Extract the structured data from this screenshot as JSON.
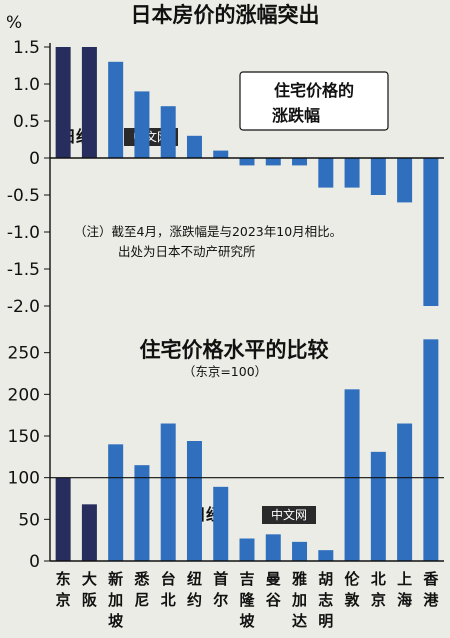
{
  "chart_data": [
    {
      "type": "bar",
      "title": "日本房价的涨幅突出",
      "ylabel": "%",
      "ylim": [
        -2.0,
        1.5
      ],
      "yticks": [
        "1.5",
        "1.0",
        "0.5",
        "0",
        "-0.5",
        "-1.0",
        "-1.5",
        "-2.0"
      ],
      "legend_box": [
        "住宅价格的",
        "涨跌幅"
      ],
      "note": [
        "（注）截至4月，涨跌幅是与2023年10月相比。",
        "出处为日本不动产研究所"
      ],
      "categories": [
        "东京",
        "大阪",
        "新加坡",
        "悉尼",
        "台北",
        "纽约",
        "首尔",
        "吉隆坡",
        "曼谷",
        "雅加达",
        "胡志明",
        "伦敦",
        "北京",
        "上海",
        "香港"
      ],
      "values": [
        1.5,
        1.5,
        1.3,
        0.9,
        0.7,
        0.3,
        0.1,
        -0.1,
        -0.1,
        -0.1,
        -0.4,
        -0.4,
        -0.5,
        -0.6,
        -2.0
      ],
      "colors": {
        "japan": "#272d5c",
        "other": "#2f6fbd"
      }
    },
    {
      "type": "bar",
      "title": "住宅价格水平的比较",
      "subtitle": "（东京=100）",
      "ylim": [
        0,
        270
      ],
      "yticks": [
        "250",
        "200",
        "150",
        "100",
        "50",
        "0"
      ],
      "categories": [
        "东京",
        "大阪",
        "新加坡",
        "悉尼",
        "台北",
        "纽约",
        "首尔",
        "吉隆坡",
        "曼谷",
        "雅加达",
        "胡志明",
        "伦敦",
        "北京",
        "上海",
        "香港"
      ],
      "values": [
        100,
        68,
        140,
        115,
        165,
        144,
        89,
        27,
        32,
        23,
        13,
        206,
        131,
        165,
        266
      ],
      "colors": {
        "japan": "#272d5c",
        "other": "#2f6fbd"
      }
    }
  ],
  "category_labels": [
    [
      "东",
      "京"
    ],
    [
      "大",
      "阪"
    ],
    [
      "新",
      "加",
      "坡"
    ],
    [
      "悉",
      "尼"
    ],
    [
      "台",
      "北"
    ],
    [
      "纽",
      "约"
    ],
    [
      "首",
      "尔"
    ],
    [
      "吉",
      "隆",
      "坡"
    ],
    [
      "曼",
      "谷"
    ],
    [
      "雅",
      "加",
      "达"
    ],
    [
      "胡",
      "志",
      "明"
    ],
    [
      "伦",
      "敦"
    ],
    [
      "北",
      "京"
    ],
    [
      "上",
      "海"
    ],
    [
      "香",
      "港"
    ]
  ],
  "watermark": {
    "logo": "日经",
    "text": "中文网"
  }
}
